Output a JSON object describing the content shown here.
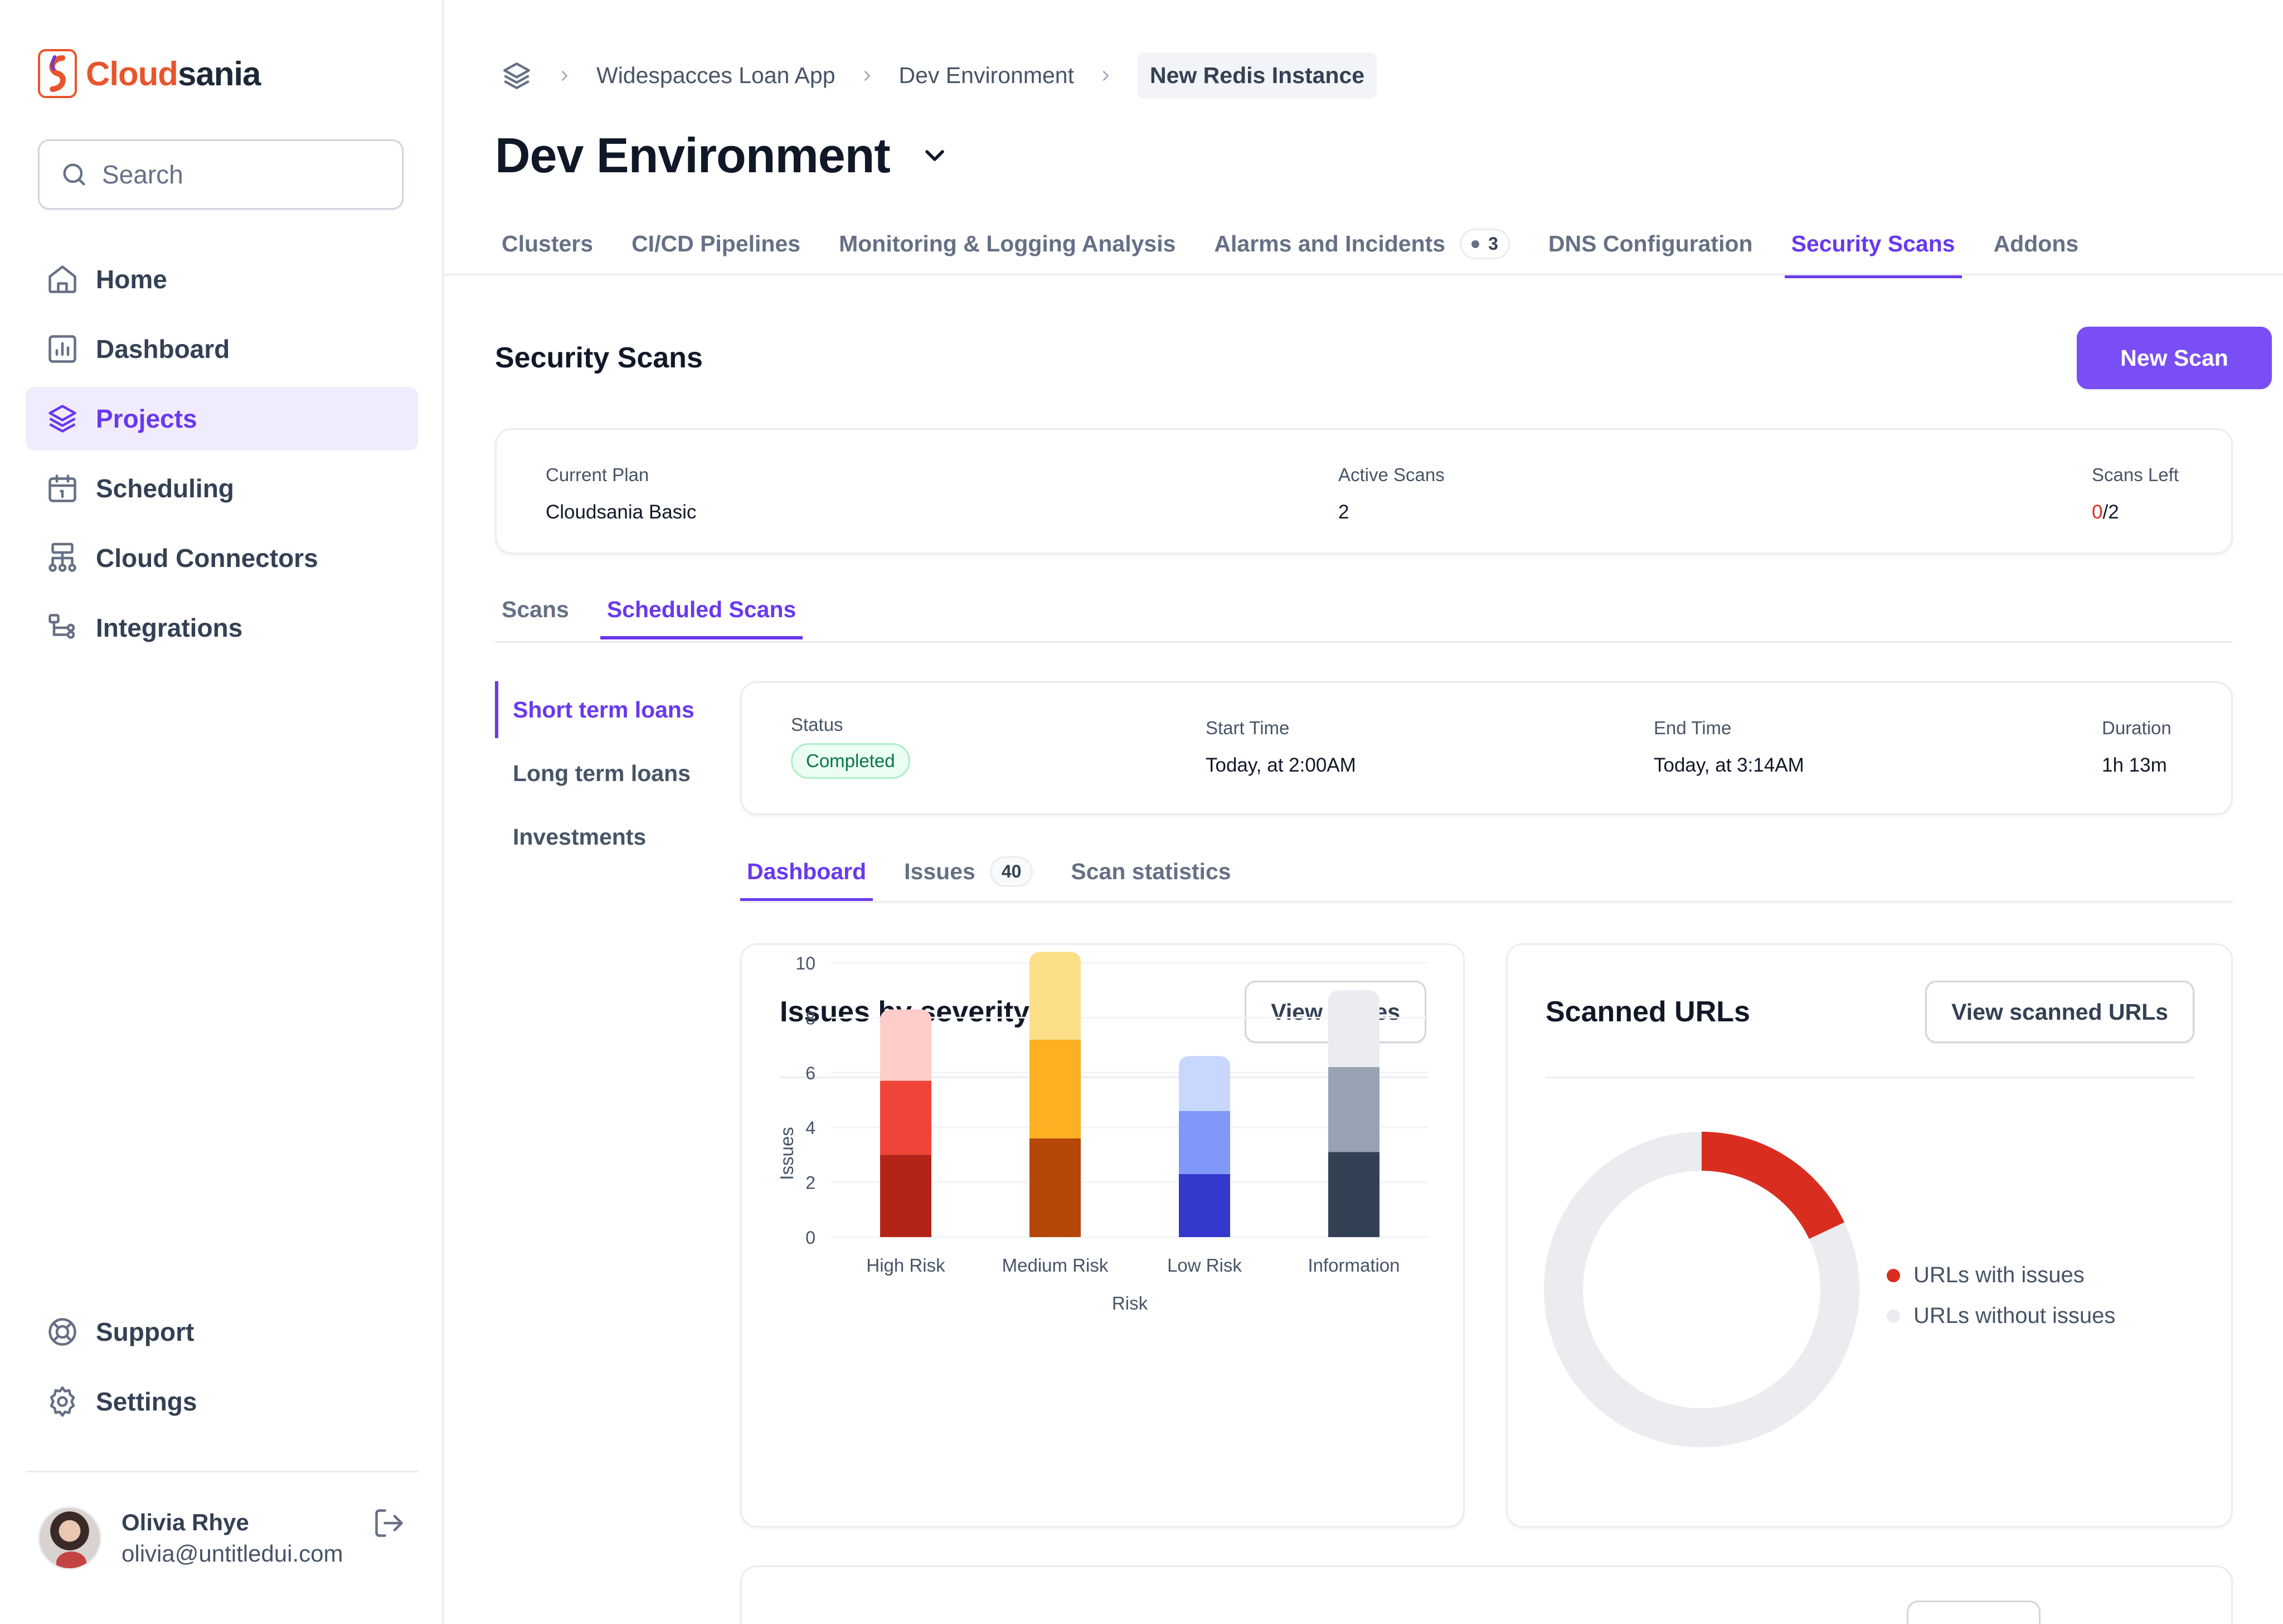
{
  "brand": {
    "part1": "Cloud",
    "part2": "sania"
  },
  "search": {
    "placeholder": "Search"
  },
  "sidebar": {
    "items": [
      {
        "label": "Home",
        "icon": "home-icon"
      },
      {
        "label": "Dashboard",
        "icon": "bar-chart-icon"
      },
      {
        "label": "Projects",
        "icon": "layers-icon",
        "active": true
      },
      {
        "label": "Scheduling",
        "icon": "calendar-icon"
      },
      {
        "label": "Cloud Connectors",
        "icon": "hierarchy-icon"
      },
      {
        "label": "Integrations",
        "icon": "dataflow-icon"
      }
    ],
    "footer": [
      {
        "label": "Support",
        "icon": "life-buoy-icon"
      },
      {
        "label": "Settings",
        "icon": "gear-icon"
      }
    ]
  },
  "user": {
    "name": "Olivia Rhye",
    "email": "olivia@untitledui.com"
  },
  "breadcrumb": [
    "Widespacces Loan App",
    "Dev Environment",
    "New Redis Instance"
  ],
  "page": {
    "title": "Dev Environment"
  },
  "tabs": [
    {
      "label": "Clusters"
    },
    {
      "label": "CI/CD Pipelines"
    },
    {
      "label": "Monitoring & Logging Analysis"
    },
    {
      "label": "Alarms and Incidents",
      "count": "3"
    },
    {
      "label": "DNS Configuration"
    },
    {
      "label": "Security Scans",
      "active": true
    },
    {
      "label": "Addons"
    }
  ],
  "section": {
    "title": "Security Scans",
    "new_scan": "New Scan"
  },
  "plan": {
    "current_plan_label": "Current Plan",
    "current_plan_value": "Cloudsania Basic",
    "active_scans_label": "Active Scans",
    "active_scans_value": "2",
    "scans_left_label": "Scans Left",
    "scans_left_used": "0",
    "scans_left_total": "/2"
  },
  "subtabs": [
    {
      "label": "Scans"
    },
    {
      "label": "Scheduled Scans",
      "active": true
    }
  ],
  "vtabs": [
    {
      "label": "Short term loans",
      "active": true
    },
    {
      "label": "Long term loans"
    },
    {
      "label": "Investments"
    }
  ],
  "status": {
    "status_label": "Status",
    "status_value": "Completed",
    "start_label": "Start Time",
    "start_value": "Today, at 2:00AM",
    "end_label": "End Time",
    "end_value": "Today, at 3:14AM",
    "duration_label": "Duration",
    "duration_value": "1h 13m"
  },
  "inner_tabs": [
    {
      "label": "Dashboard",
      "active": true
    },
    {
      "label": "Issues",
      "count": "40"
    },
    {
      "label": "Scan statistics"
    }
  ],
  "severity_card": {
    "title": "Issues by severity",
    "button": "View Issues"
  },
  "urls_card": {
    "title": "Scanned URLs",
    "button": "View scanned URLs",
    "legend": [
      {
        "label": "URLs with issues",
        "color": "#d92d20"
      },
      {
        "label": "URLs without issues",
        "color": "#eaecf0"
      }
    ]
  },
  "colors": {
    "accent": "#6938ef",
    "primary_button": "#7a4ef5"
  },
  "chart_data": [
    {
      "type": "bar",
      "stacked": true,
      "title": "Issues by severity",
      "xlabel": "Risk",
      "ylabel": "Issues",
      "ylim": [
        0,
        10
      ],
      "yticks": [
        0,
        2,
        4,
        6,
        8,
        10
      ],
      "grid": true,
      "categories": [
        "High Risk",
        "Medium Risk",
        "Low Risk",
        "Information"
      ],
      "series": [
        {
          "values": [
            3.0,
            3.6,
            2.3,
            3.1
          ],
          "colors": [
            "#b42318",
            "#b54708",
            "#3538cd",
            "#344054"
          ]
        },
        {
          "values": [
            2.7,
            3.6,
            2.3,
            3.1
          ],
          "colors": [
            "#f04438",
            "#fdb022",
            "#8098f9",
            "#98a2b3"
          ]
        },
        {
          "values": [
            2.6,
            3.2,
            2.0,
            2.8
          ],
          "colors": [
            "#fecdca",
            "#fedf89",
            "#c7d7fe",
            "#eaecf0"
          ]
        }
      ]
    },
    {
      "type": "pie",
      "donut": true,
      "title": "Scanned URLs",
      "labels": [
        "URLs with issues",
        "URLs without issues"
      ],
      "values": [
        18,
        82
      ],
      "colors": [
        "#d92d20",
        "#eaecf0"
      ]
    }
  ]
}
